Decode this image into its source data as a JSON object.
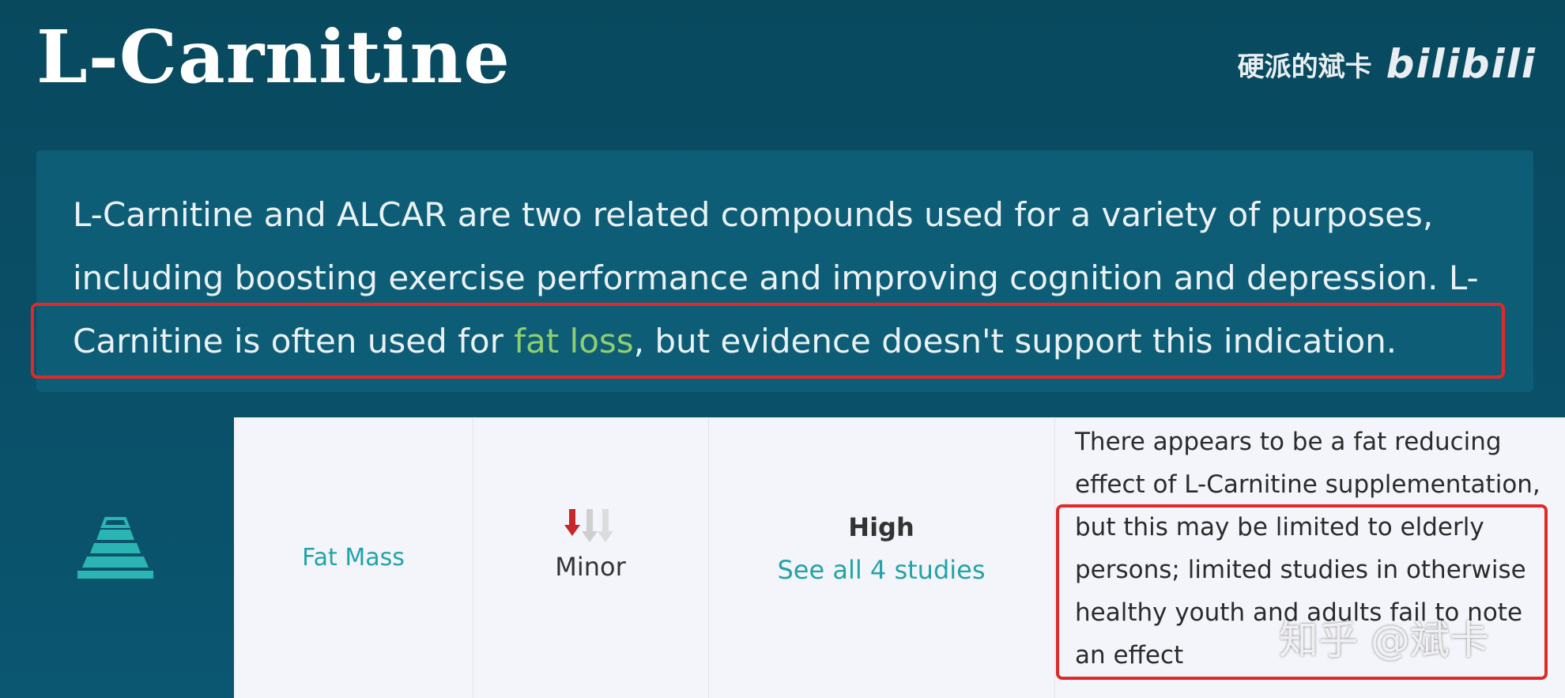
{
  "header": {
    "title": "L-Carnitine",
    "watermark_channel": "硬派的斌卡",
    "watermark_logo": "bilibili"
  },
  "summary": {
    "part1": "L-Carnitine and ALCAR are two related compounds used for a variety of purposes, including boosting exercise performance and improving cognition and depression. L-Carnitine is often used for ",
    "highlight": "fat loss",
    "part2": ", but evidence doesn't support this indication."
  },
  "outcome_row": {
    "icon": "pyramid-scale-icon",
    "outcome": "Fat Mass",
    "effect_label": "Minor",
    "effect_icon": "down-arrows-icon",
    "evidence_level": "High",
    "studies_link": "See all 4 studies",
    "notes": "There appears to be a fat reducing effect of L-Carnitine supplementation, but this may be limited to elderly persons; limited studies in otherwise healthy youth and adults fail to note an effect"
  },
  "footer_watermark": "知乎 @斌卡",
  "colors": {
    "background": "#08495e",
    "teal_accent": "#22a3a9",
    "highlight_green": "#8fcf72",
    "annotation_red": "#e02a2a"
  }
}
